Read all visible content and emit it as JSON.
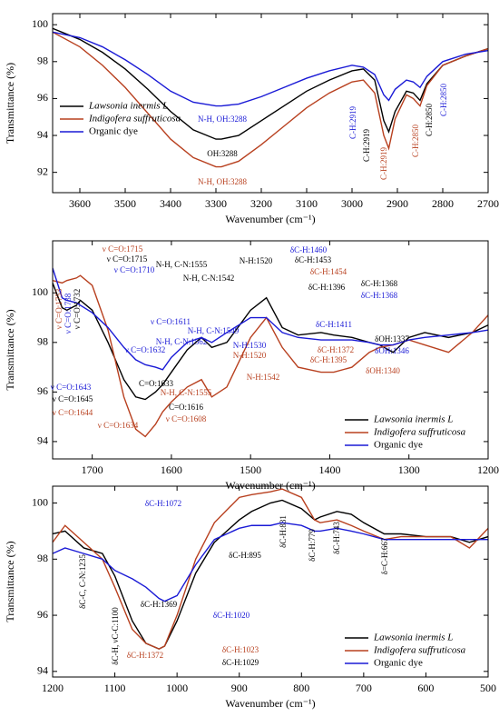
{
  "chart_data": [
    {
      "type": "line",
      "xlabel": "Wavenumber (cm⁻¹)",
      "ylabel": "Transmittance (%)",
      "xlim": [
        3660,
        2700
      ],
      "ylim": [
        90.9,
        100.6
      ],
      "xticks": [
        3600,
        3500,
        3400,
        3300,
        3200,
        3100,
        3000,
        2900,
        2800,
        2700
      ],
      "yticks": [
        92,
        94,
        96,
        98,
        100
      ],
      "grid": false,
      "legend": "upper left",
      "x": [
        3660,
        3600,
        3550,
        3500,
        3450,
        3400,
        3350,
        3300,
        3288,
        3250,
        3200,
        3150,
        3100,
        3050,
        3000,
        2975,
        2950,
        2930,
        2919,
        2905,
        2880,
        2865,
        2850,
        2835,
        2800,
        2750,
        2700
      ],
      "series": [
        {
          "name": "Lawsonia inermis L",
          "color": "#000000",
          "values": [
            99.8,
            99.2,
            98.5,
            97.6,
            96.5,
            95.3,
            94.3,
            93.8,
            93.8,
            94.0,
            94.8,
            95.6,
            96.4,
            97.0,
            97.5,
            97.6,
            97.0,
            94.8,
            94.2,
            95.3,
            96.4,
            96.3,
            95.9,
            96.8,
            97.8,
            98.3,
            98.7
          ]
        },
        {
          "name": "Indigofera suffruticosa",
          "color": "#b8401f",
          "values": [
            99.6,
            98.8,
            97.8,
            96.6,
            95.2,
            93.8,
            92.8,
            92.3,
            92.3,
            92.6,
            93.5,
            94.5,
            95.5,
            96.3,
            96.9,
            97.0,
            96.3,
            94.0,
            93.3,
            94.9,
            96.2,
            96.0,
            95.6,
            96.7,
            97.8,
            98.3,
            98.7
          ]
        },
        {
          "name": "Organic dye",
          "color": "#1a1ad6",
          "values": [
            99.6,
            99.3,
            98.8,
            98.1,
            97.3,
            96.4,
            95.8,
            95.6,
            95.6,
            95.7,
            96.1,
            96.6,
            97.1,
            97.5,
            97.8,
            97.7,
            97.3,
            96.2,
            95.9,
            96.5,
            97.0,
            96.9,
            96.6,
            97.2,
            98.0,
            98.4,
            98.6
          ]
        }
      ],
      "annotations": [
        {
          "text": "N-H, OH:3288",
          "color": "#1a1ad6"
        },
        {
          "text": "OH:3288",
          "color": "#000000"
        },
        {
          "text": "N-H, OH:3288",
          "color": "#b8401f"
        },
        {
          "text": "C-H:2919",
          "color": "#1a1ad6"
        },
        {
          "text": "C-H:2919",
          "color": "#000000"
        },
        {
          "text": "C-H:2919",
          "color": "#b8401f"
        },
        {
          "text": "C-H:2850",
          "color": "#b8401f"
        },
        {
          "text": "C-H:2850",
          "color": "#000000"
        },
        {
          "text": "C-H:2850",
          "color": "#1a1ad6"
        }
      ]
    },
    {
      "type": "line",
      "xlabel": "Wavenumber (cm⁻¹)",
      "ylabel": "Transmittance (%)",
      "xlim": [
        1750,
        1200
      ],
      "ylim": [
        93.3,
        102.1
      ],
      "xticks": [
        1700,
        1600,
        1500,
        1400,
        1300,
        1200
      ],
      "yticks": [
        94,
        96,
        98,
        100
      ],
      "grid": false,
      "legend": "lower right",
      "x": [
        1750,
        1738,
        1732,
        1720,
        1715,
        1700,
        1680,
        1660,
        1645,
        1633,
        1620,
        1611,
        1600,
        1580,
        1562,
        1549,
        1530,
        1500,
        1480,
        1460,
        1440,
        1411,
        1395,
        1372,
        1350,
        1337,
        1320,
        1300,
        1280,
        1250,
        1220,
        1200
      ],
      "series": [
        {
          "name": "Lawsonia inermis L",
          "color": "#000000",
          "values": [
            100.4,
            99.4,
            99.3,
            99.5,
            99.7,
            99.3,
            98.0,
            96.5,
            95.8,
            95.7,
            96.0,
            96.3,
            96.8,
            97.7,
            98.2,
            97.8,
            98.0,
            99.3,
            99.8,
            98.6,
            98.3,
            98.4,
            98.3,
            98.2,
            98.0,
            97.9,
            97.6,
            98.2,
            98.4,
            98.2,
            98.4,
            98.7
          ]
        },
        {
          "name": "Indigofera suffruticosa",
          "color": "#b8401f",
          "values": [
            100.5,
            100.4,
            100.5,
            100.6,
            100.7,
            100.3,
            98.5,
            95.8,
            94.5,
            94.2,
            94.7,
            95.2,
            95.6,
            96.2,
            96.5,
            95.8,
            96.2,
            98.2,
            99.0,
            97.8,
            97.0,
            96.8,
            96.8,
            97.0,
            97.6,
            97.8,
            97.9,
            98.1,
            97.9,
            97.6,
            98.4,
            99.1
          ]
        },
        {
          "name": "Organic dye",
          "color": "#1a1ad6",
          "values": [
            101.0,
            99.8,
            99.7,
            99.6,
            99.5,
            99.2,
            98.6,
            97.8,
            97.3,
            97.1,
            97.0,
            96.9,
            97.4,
            98.0,
            98.2,
            98.0,
            98.4,
            99.0,
            99.0,
            98.4,
            98.2,
            98.1,
            98.1,
            98.1,
            98.0,
            97.9,
            97.9,
            98.1,
            98.2,
            98.3,
            98.4,
            98.5
          ]
        }
      ],
      "annotations": [
        {
          "text": "ν C=O:1753",
          "color": "#b8401f"
        },
        {
          "text": "ν C=O:1738",
          "color": "#1a1ad6"
        },
        {
          "text": "ν C=O:1732",
          "color": "#000000"
        },
        {
          "text": "ν C=O:1715",
          "color": "#b8401f"
        },
        {
          "text": "ν C=O:1715",
          "color": "#000000"
        },
        {
          "text": "ν C=O:1710",
          "color": "#1a1ad6"
        },
        {
          "text": "ν C=O:1611",
          "color": "#1a1ad6"
        },
        {
          "text": "ν C=O:1632",
          "color": "#1a1ad6"
        },
        {
          "text": "C=O:1633",
          "color": "#000000"
        },
        {
          "text": "ν C=O:1643",
          "color": "#1a1ad6"
        },
        {
          "text": "ν C=O:1645",
          "color": "#000000"
        },
        {
          "text": "ν C=O:1644",
          "color": "#b8401f"
        },
        {
          "text": "ν C=O:1634",
          "color": "#b8401f"
        },
        {
          "text": "ν C=O:1608",
          "color": "#b8401f"
        },
        {
          "text": "C=O:1616",
          "color": "#000000"
        },
        {
          "text": "N-H, C-N:1555",
          "color": "#b8401f"
        },
        {
          "text": "N-H, C-N:1555",
          "color": "#000000"
        },
        {
          "text": "N-H, C-N:1542",
          "color": "#000000"
        },
        {
          "text": "N-H:1520",
          "color": "#000000"
        },
        {
          "text": "N-H, C-N:1549",
          "color": "#1a1ad6"
        },
        {
          "text": "N-H, C-N:1562",
          "color": "#1a1ad6"
        },
        {
          "text": "N-H:1530",
          "color": "#1a1ad6"
        },
        {
          "text": "N-H:1520",
          "color": "#b8401f"
        },
        {
          "text": "N-H:1542",
          "color": "#b8401f"
        },
        {
          "text": "δC-H:1460",
          "color": "#1a1ad6"
        },
        {
          "text": "δC-H:1453",
          "color": "#000000"
        },
        {
          "text": "δC-H:1454",
          "color": "#b8401f"
        },
        {
          "text": "δC-H:1396",
          "color": "#000000"
        },
        {
          "text": "δC-H:1368",
          "color": "#000000"
        },
        {
          "text": "δC-H:1368",
          "color": "#1a1ad6"
        },
        {
          "text": "δC-H:1411",
          "color": "#1a1ad6"
        },
        {
          "text": "δC-H:1372",
          "color": "#b8401f"
        },
        {
          "text": "δC-H:1395",
          "color": "#b8401f"
        },
        {
          "text": "δOH:1337",
          "color": "#000000"
        },
        {
          "text": "δOH:1346",
          "color": "#1a1ad6"
        },
        {
          "text": "δOH:1340",
          "color": "#b8401f"
        }
      ]
    },
    {
      "type": "line",
      "xlabel": "Wavenumber (cm⁻¹)",
      "ylabel": "Transmittance (%)",
      "xlim": [
        1200,
        500
      ],
      "ylim": [
        93.8,
        100.6
      ],
      "xticks": [
        1200,
        1100,
        1000,
        900,
        800,
        700,
        600,
        500
      ],
      "yticks": [
        94,
        96,
        98,
        100
      ],
      "grid": false,
      "legend": "lower right",
      "x": [
        1200,
        1180,
        1150,
        1120,
        1100,
        1072,
        1050,
        1029,
        1020,
        1000,
        970,
        940,
        900,
        880,
        850,
        831,
        800,
        779,
        770,
        743,
        720,
        700,
        667,
        640,
        600,
        560,
        530,
        500
      ],
      "series": [
        {
          "name": "Lawsonia inermis L",
          "color": "#000000",
          "values": [
            98.9,
            99.0,
            98.4,
            98.2,
            97.4,
            95.8,
            95.0,
            94.8,
            94.9,
            95.8,
            97.5,
            98.6,
            99.4,
            99.7,
            100.0,
            100.1,
            99.8,
            99.4,
            99.5,
            99.7,
            99.6,
            99.3,
            98.9,
            98.9,
            98.8,
            98.8,
            98.6,
            98.8
          ]
        },
        {
          "name": "Indigofera suffruticosa",
          "color": "#b8401f",
          "values": [
            98.6,
            99.2,
            98.6,
            98.0,
            97.0,
            95.5,
            95.0,
            94.8,
            94.9,
            96.0,
            98.0,
            99.3,
            100.2,
            100.3,
            100.4,
            100.5,
            100.2,
            99.4,
            99.3,
            99.4,
            99.2,
            99.0,
            98.7,
            98.8,
            98.8,
            98.8,
            98.4,
            99.1
          ]
        },
        {
          "name": "Organic dye",
          "color": "#1a1ad6",
          "values": [
            98.2,
            98.4,
            98.2,
            98.0,
            97.6,
            97.3,
            97.0,
            96.6,
            96.5,
            96.7,
            97.8,
            98.7,
            99.1,
            99.2,
            99.2,
            99.3,
            99.2,
            99.0,
            99.0,
            99.1,
            99.0,
            98.9,
            98.7,
            98.7,
            98.7,
            98.7,
            98.7,
            98.7
          ]
        }
      ],
      "annotations": [
        {
          "text": "δC-H:1072",
          "color": "#1a1ad6"
        },
        {
          "text": "δC-C, C-N:1235",
          "color": "#000000"
        },
        {
          "text": "δC-H, νC-C:1100",
          "color": "#000000"
        },
        {
          "text": "δC-H:1369",
          "color": "#000000"
        },
        {
          "text": "δC-H:1020",
          "color": "#1a1ad6"
        },
        {
          "text": "δC-H:1372",
          "color": "#b8401f"
        },
        {
          "text": "δC-H:1023",
          "color": "#b8401f"
        },
        {
          "text": "δC-H:1029",
          "color": "#000000"
        },
        {
          "text": "δC-H:895",
          "color": "#000000"
        },
        {
          "text": "δC-H:831",
          "color": "#000000"
        },
        {
          "text": "δC-H:779",
          "color": "#000000"
        },
        {
          "text": "δC-H:743",
          "color": "#000000"
        },
        {
          "text": "δ=C-H:667",
          "color": "#000000"
        }
      ]
    }
  ]
}
